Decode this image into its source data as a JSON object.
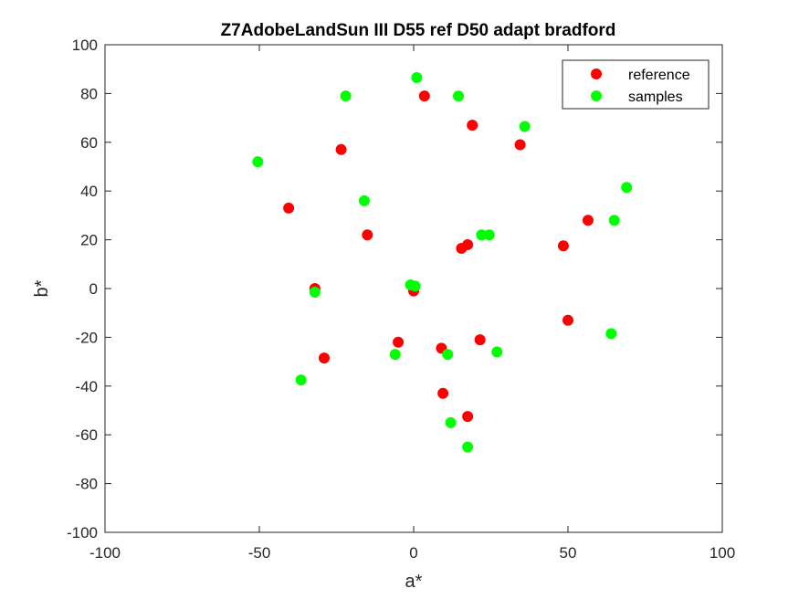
{
  "chart_data": {
    "type": "scatter",
    "title": "Z7AdobeLandSun III D55 ref D50 adapt bradford",
    "xlabel": "a*",
    "ylabel": "b*",
    "xlim": [
      -100,
      100
    ],
    "ylim": [
      -100,
      100
    ],
    "xticks": [
      -100,
      -50,
      0,
      50,
      100
    ],
    "yticks": [
      -100,
      -80,
      -60,
      -40,
      -20,
      0,
      20,
      40,
      60,
      80,
      100
    ],
    "grid": false,
    "legend_position": "top-right",
    "series": [
      {
        "name": "reference",
        "color": "#ff0000",
        "points": [
          [
            3.5,
            79
          ],
          [
            19,
            67
          ],
          [
            -23.5,
            57
          ],
          [
            34.5,
            59
          ],
          [
            -40.5,
            33
          ],
          [
            56.5,
            28
          ],
          [
            -15,
            22
          ],
          [
            17.5,
            18
          ],
          [
            15.5,
            16.5
          ],
          [
            48.5,
            17.5
          ],
          [
            -32,
            0
          ],
          [
            0,
            -1
          ],
          [
            50,
            -13
          ],
          [
            -5,
            -22
          ],
          [
            21.5,
            -21
          ],
          [
            9,
            -24.5
          ],
          [
            -29,
            -28.5
          ],
          [
            9.5,
            -43
          ],
          [
            17.5,
            -52.5
          ]
        ]
      },
      {
        "name": "samples",
        "color": "#00ff00",
        "points": [
          [
            1,
            86.5
          ],
          [
            -22,
            79
          ],
          [
            14.5,
            79
          ],
          [
            36,
            66.5
          ],
          [
            -50.5,
            52
          ],
          [
            69,
            41.5
          ],
          [
            -16,
            36
          ],
          [
            65,
            28
          ],
          [
            22,
            22
          ],
          [
            24.5,
            22
          ],
          [
            -1,
            1.5
          ],
          [
            0.5,
            1
          ],
          [
            -32,
            -1.5
          ],
          [
            64,
            -18.5
          ],
          [
            -6,
            -27
          ],
          [
            11,
            -27
          ],
          [
            27,
            -26
          ],
          [
            -36.5,
            -37.5
          ],
          [
            12,
            -55
          ],
          [
            17.5,
            -65
          ]
        ]
      }
    ]
  }
}
